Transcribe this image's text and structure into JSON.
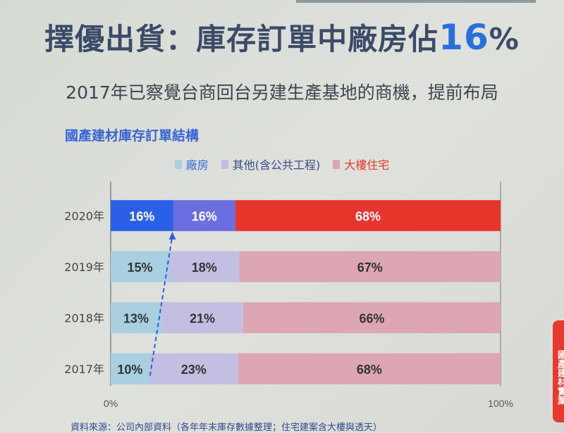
{
  "title": {
    "text": "擇優出貨：庫存訂單中廠房佔",
    "highlight": "16",
    "suffix": "%"
  },
  "subtitle": "2017年已察覺台商回台另建生產基地的商機，提前布局",
  "side_tab": "國產建材實業",
  "source": "資料來源：公司內部資料（各年年末庫存數據整理；住宅建案含大樓與透天）",
  "chart_data": {
    "type": "bar",
    "orientation": "horizontal-stacked",
    "title": "國產建材庫存訂單結構",
    "categories": [
      "2020年",
      "2019年",
      "2018年",
      "2017年"
    ],
    "series": [
      {
        "name": "廠房",
        "values": [
          16,
          15,
          13,
          10
        ],
        "color": "#a9cfe0",
        "highlight_color": "#2b5fe8"
      },
      {
        "name": "其他(含公共工程)",
        "values": [
          16,
          18,
          21,
          23
        ],
        "color": "#c2bfe2",
        "highlight_color": "#6a6ee0"
      },
      {
        "name": "大樓住宅",
        "values": [
          68,
          67,
          66,
          68
        ],
        "color": "#dca6b2",
        "highlight_color": "#e8352c"
      }
    ],
    "highlighted_category": "2020年",
    "xlim": [
      0,
      100
    ],
    "xticks": [
      "0%",
      "100%"
    ],
    "legend": "top-center",
    "legend_text_colors": [
      "#3a63d8",
      "#3a4a8a",
      "#e8352c"
    ],
    "annotation": "dashed arrow from 2017 廠房 to 2020 廠房"
  }
}
